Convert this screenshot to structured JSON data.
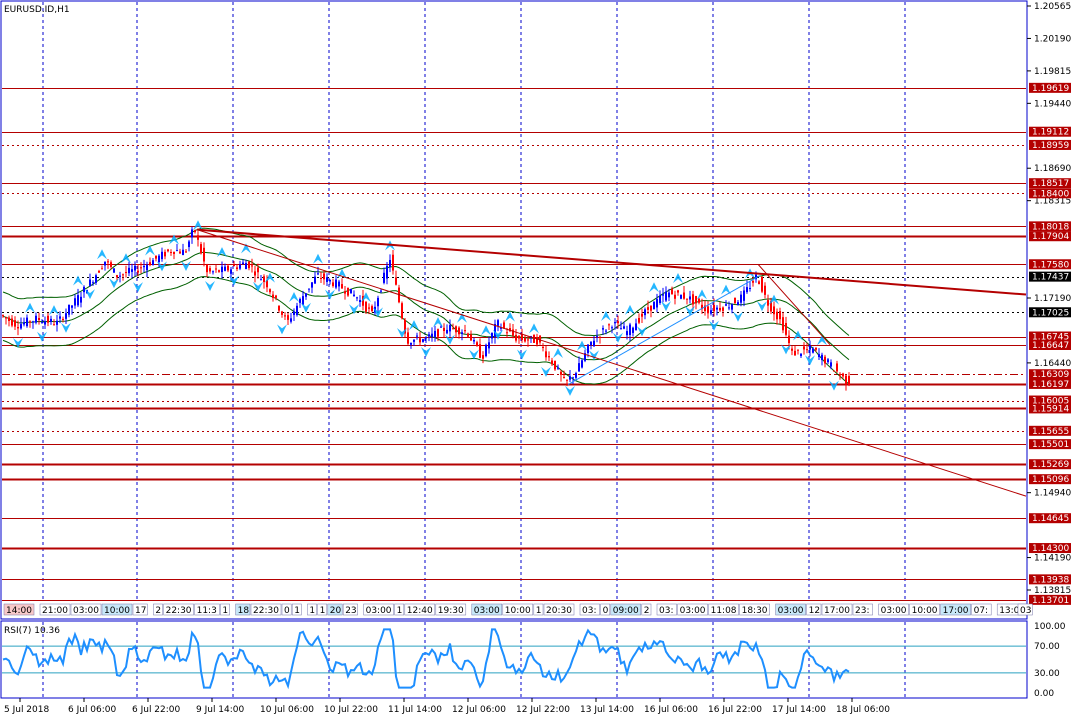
{
  "window": {
    "title": "EURUSD.ID,H1",
    "rsi_label": "RSI(7) 10.36"
  },
  "colors": {
    "grid": "#0000cc",
    "frame": "#0000cc",
    "level": "#b40000",
    "trend": "#b40000",
    "bull": "#0000ff",
    "bear": "#ff0000",
    "band": "#006000",
    "fractal": "#00aaff",
    "rsi": "#1e8fff",
    "rsi_level": "#2aa0c0",
    "current": "#cc0000"
  },
  "chart_data": {
    "type": "candlestick",
    "symbol": "EURUSD.ID",
    "timeframe": "H1",
    "ylim": [
      1.13701,
      1.20565
    ],
    "price_ticks": [
      "1.20565",
      "1.20190",
      "1.19815",
      "1.19440",
      "1.18690",
      "1.18315",
      "1.17190",
      "1.16440",
      "1.14940",
      "1.14190",
      "1.13815"
    ],
    "x_ticks": [
      "5 Jul 2018",
      "6 Jul 06:00",
      "6 Jul 22:00",
      "9 Jul 14:00",
      "10 Jul 06:00",
      "10 Jul 22:00",
      "11 Jul 14:00",
      "12 Jul 06:00",
      "12 Jul 22:00",
      "13 Jul 14:00",
      "16 Jul 06:00",
      "16 Jul 22:00",
      "17 Jul 14:00",
      "18 Jul 06:00"
    ],
    "horizontal_levels": [
      {
        "label": "1.19619",
        "style": "solid",
        "marker": "red"
      },
      {
        "label": "1.19112",
        "style": "solid",
        "marker": "red"
      },
      {
        "label": "1.18959",
        "style": "dashed",
        "marker": "red"
      },
      {
        "label": "1.18517",
        "style": "solid",
        "marker": "red"
      },
      {
        "label": "1.18400",
        "style": "dashed",
        "marker": "red"
      },
      {
        "label": "1.18018",
        "style": "solid",
        "marker": "red"
      },
      {
        "label": "1.17904",
        "style": "solid",
        "marker": "red"
      },
      {
        "label": "1.17580",
        "style": "solid",
        "marker": "red"
      },
      {
        "label": "1.17437",
        "style": "dashed",
        "marker": "black"
      },
      {
        "label": "1.17025",
        "style": "dashed",
        "marker": "black"
      },
      {
        "label": "1.16745",
        "style": "solid",
        "marker": "red"
      },
      {
        "label": "1.16647",
        "style": "solid",
        "marker": "red"
      },
      {
        "label": "1.16309",
        "style": "dashdot",
        "marker": "red"
      },
      {
        "label": "1.16197",
        "style": "solid",
        "marker": "red"
      },
      {
        "label": "1.16005",
        "style": "dashed",
        "marker": "red"
      },
      {
        "label": "1.15914",
        "style": "solid",
        "marker": "red"
      },
      {
        "label": "1.15655",
        "style": "dashed",
        "marker": "red"
      },
      {
        "label": "1.15501",
        "style": "solid",
        "marker": "red"
      },
      {
        "label": "1.15269",
        "style": "solid",
        "marker": "red"
      },
      {
        "label": "1.15096",
        "style": "solid",
        "marker": "red"
      },
      {
        "label": "1.14645",
        "style": "solid",
        "marker": "red"
      },
      {
        "label": "1.14300",
        "style": "solid",
        "marker": "red"
      },
      {
        "label": "1.13938",
        "style": "solid",
        "marker": "red"
      },
      {
        "label": "1.13701",
        "style": "solid",
        "marker": "red"
      }
    ],
    "trendlines": [
      {
        "from": [
          1.1798,
          0.18
        ],
        "to": [
          1.1723,
          1.0
        ]
      },
      {
        "from": [
          1.1798,
          0.18
        ],
        "to": [
          1.149,
          1.0
        ]
      }
    ],
    "rsi": {
      "name": "RSI(7)",
      "value": 10.36,
      "ylim": [
        0,
        100
      ],
      "levels": [
        70,
        30
      ],
      "tick_labels": [
        "100.00",
        "70.00",
        "30.00",
        "0.00"
      ]
    },
    "session_labels": [
      "14:00",
      "21:00",
      "03:00",
      "10:00",
      "17",
      "2",
      "22:30",
      "11:3",
      "1",
      "18",
      "22:30",
      "0",
      "1",
      "1",
      "1",
      "20",
      "23",
      "03:00",
      "1",
      "12:40",
      "19:30",
      "03:00",
      "10:00",
      "1",
      "20:30",
      "03:",
      "0",
      "09:00",
      "2",
      "03:",
      "03:00",
      "11:08",
      "18:30",
      "03:00",
      "12",
      "17:00",
      "23:",
      "03:00",
      "10:00",
      "17:00",
      "07:",
      "13:00",
      "03"
    ]
  }
}
